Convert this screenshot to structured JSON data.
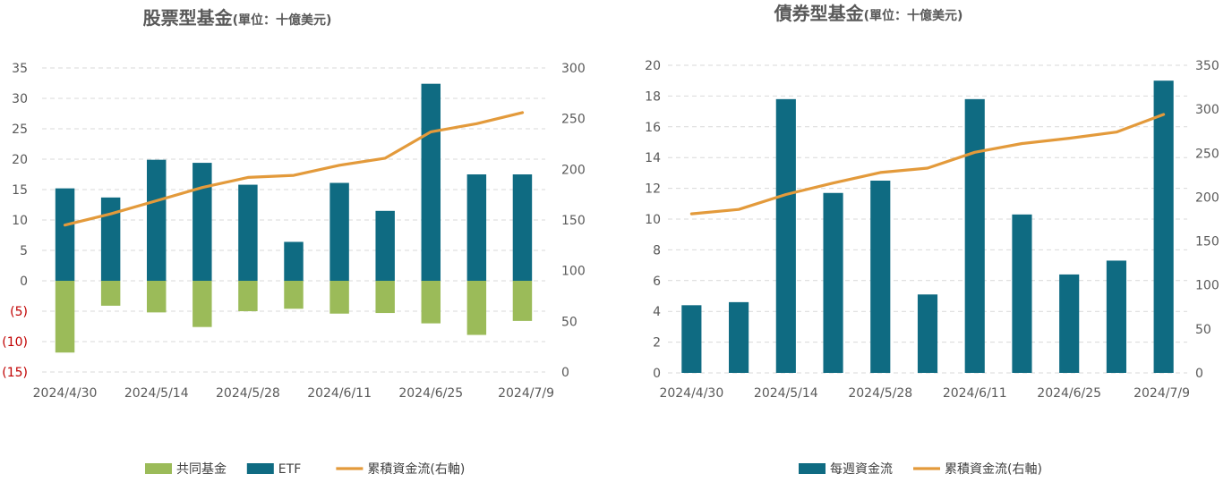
{
  "colors": {
    "mutual_fund": "#9bbb59",
    "etf": "#0f6b82",
    "cumulative": "#e39a3b",
    "weekly": "#0f6b82",
    "grid": "#d9d9d9",
    "negative_tick": "#c00000"
  },
  "chart_data": [
    {
      "type": "bar",
      "subtype": "stacked-bar-with-line",
      "title": "股票型基金",
      "subtitle": "(單位：十億美元)",
      "categories": [
        "2024/4/30",
        "2024/5/7",
        "2024/5/14",
        "2024/5/21",
        "2024/5/28",
        "2024/6/4",
        "2024/6/11",
        "2024/6/18",
        "2024/6/25",
        "2024/7/2",
        "2024/7/9"
      ],
      "x_tick_labels": [
        "2024/4/30",
        "2024/5/14",
        "2024/5/28",
        "2024/6/11",
        "2024/6/25",
        "2024/7/9"
      ],
      "series": [
        {
          "name": "共同基金",
          "axis": "left",
          "kind": "bar",
          "values": [
            -11.8,
            -4.1,
            -5.2,
            -7.6,
            -5.0,
            -4.6,
            -5.4,
            -5.3,
            -7.0,
            -8.9,
            -6.6
          ]
        },
        {
          "name": "ETF",
          "axis": "left",
          "kind": "bar",
          "values": [
            15.2,
            13.7,
            19.9,
            19.4,
            15.8,
            6.4,
            16.1,
            11.5,
            32.4,
            17.5,
            17.5
          ]
        },
        {
          "name": "累積資金流(右軸)",
          "axis": "right",
          "kind": "line",
          "values": [
            145,
            156,
            169,
            182,
            192,
            194,
            204,
            211,
            237,
            245,
            256
          ]
        }
      ],
      "y_left": {
        "min": -15,
        "max": 35,
        "ticks": [
          "35",
          "30",
          "25",
          "20",
          "15",
          "10",
          "5",
          "0",
          "(5)",
          "(10)",
          "(15)"
        ]
      },
      "y_right": {
        "min": 0,
        "max": 300,
        "ticks": [
          "300",
          "250",
          "200",
          "150",
          "100",
          "50",
          "0"
        ]
      },
      "grid": true,
      "legend_position": "bottom",
      "legend": [
        "共同基金",
        "ETF",
        "累積資金流(右軸)"
      ]
    },
    {
      "type": "bar",
      "subtype": "bar-with-line",
      "title": "債券型基金",
      "subtitle": "(單位：十億美元)",
      "categories": [
        "2024/4/30",
        "2024/5/7",
        "2024/5/14",
        "2024/5/21",
        "2024/5/28",
        "2024/6/4",
        "2024/6/11",
        "2024/6/18",
        "2024/6/25",
        "2024/7/2",
        "2024/7/9"
      ],
      "x_tick_labels": [
        "2024/4/30",
        "2024/5/14",
        "2024/5/28",
        "2024/6/11",
        "2024/6/25",
        "2024/7/9"
      ],
      "series": [
        {
          "name": "每週資金流",
          "axis": "left",
          "kind": "bar",
          "values": [
            4.4,
            4.6,
            17.8,
            11.7,
            12.5,
            5.1,
            17.8,
            10.3,
            6.4,
            7.3,
            19.0
          ]
        },
        {
          "name": "累積資金流(右軸)",
          "axis": "right",
          "kind": "line",
          "values": [
            181,
            186,
            203,
            216,
            228,
            233,
            251,
            261,
            267,
            274,
            294
          ]
        }
      ],
      "y_left": {
        "min": 0,
        "max": 20,
        "ticks": [
          "20",
          "18",
          "16",
          "14",
          "12",
          "10",
          "8",
          "6",
          "4",
          "2",
          "0"
        ]
      },
      "y_right": {
        "min": 0,
        "max": 350,
        "ticks": [
          "350",
          "300",
          "250",
          "200",
          "150",
          "100",
          "50",
          "0"
        ]
      },
      "grid": true,
      "legend_position": "bottom",
      "legend": [
        "每週資金流",
        "累積資金流(右軸)"
      ]
    }
  ]
}
